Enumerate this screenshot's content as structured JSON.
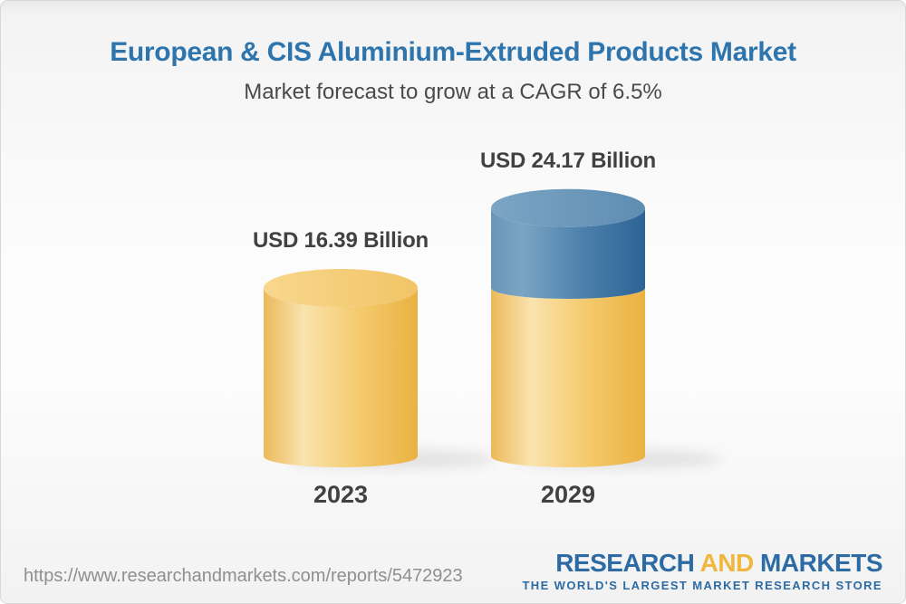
{
  "chart_data": {
    "type": "bar",
    "subtype": "3d-cylinder-comparison",
    "title": "European & CIS Aluminium-Extruded Products Market",
    "subtitle": "Market forecast to grow at a CAGR of 6.5%",
    "cagr_percent": 6.5,
    "unit": "USD Billion",
    "categories": [
      "2023",
      "2029"
    ],
    "values": [
      16.39,
      24.17
    ],
    "value_labels": [
      "USD 16.39 Billion",
      "USD 24.17 Billion"
    ],
    "ylim": [
      0,
      24.17
    ],
    "grid": false,
    "legend": "none",
    "bars": [
      {
        "category": "2023",
        "label": "USD 16.39 Billion",
        "segments": [
          {
            "value": 16.39,
            "color": "gold"
          }
        ]
      },
      {
        "category": "2029",
        "label": "USD 24.17 Billion",
        "segments": [
          {
            "value": 16.39,
            "color": "gold"
          },
          {
            "value": 7.78,
            "color": "blue"
          }
        ]
      }
    ],
    "palette": {
      "gold_side": [
        "#ecb95a",
        "#fae3ae",
        "#f4ca6c",
        "#eab242"
      ],
      "gold_top": [
        "#f8d78d",
        "#f1c466"
      ],
      "blue_side": [
        "#6b95b8",
        "#7ba5c4",
        "#4c80ab",
        "#2d6496"
      ],
      "blue_top": [
        "#7ca5c4",
        "#5e8db2"
      ],
      "title_blue": "#2e75ad",
      "text_dark": "#414042"
    }
  },
  "footer": {
    "url": "https://www.researchandmarkets.com/reports/5472923",
    "logo": {
      "word1": "RESEARCH",
      "word2": "AND",
      "word3": "MARKETS",
      "tagline": "THE WORLD'S LARGEST MARKET RESEARCH STORE",
      "blue": "#2d6ba4",
      "gold": "#efb73e"
    }
  }
}
